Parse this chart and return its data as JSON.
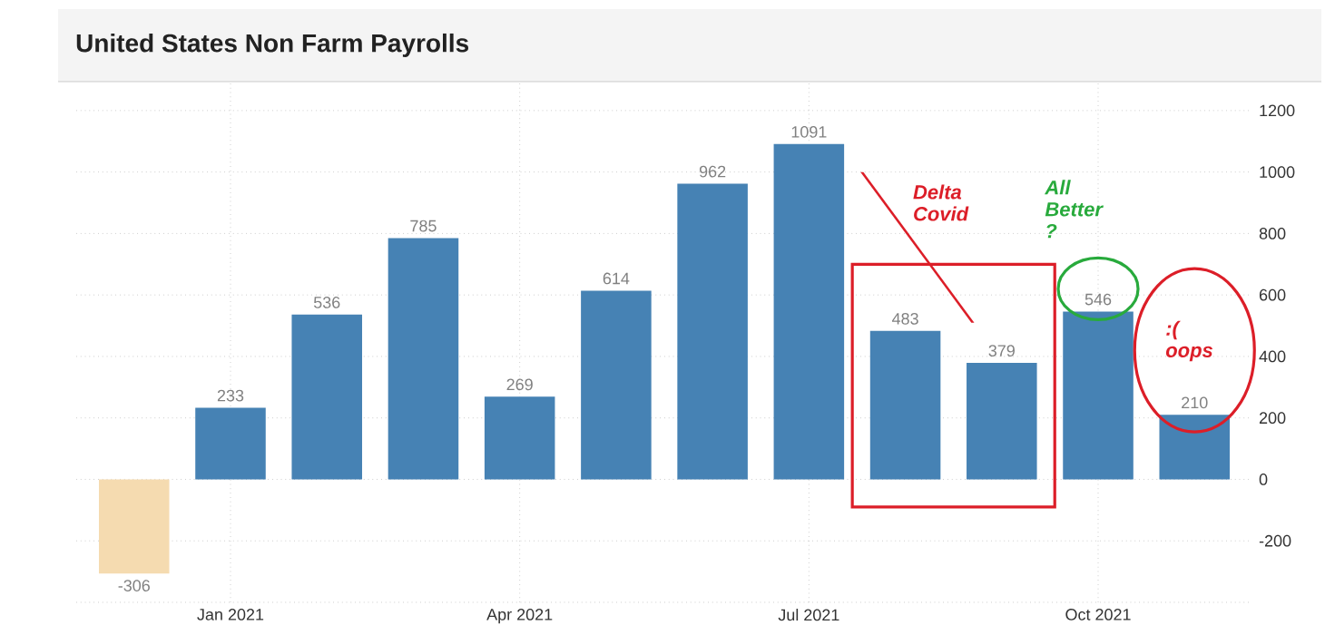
{
  "chart_data": {
    "type": "bar",
    "title": "United States Non Farm Payrolls",
    "categories": [
      null,
      "Jan 2021",
      null,
      null,
      "Apr 2021",
      null,
      null,
      "Jul 2021",
      null,
      null,
      "Oct 2021",
      null
    ],
    "values": [
      -306,
      233,
      536,
      785,
      269,
      614,
      962,
      1091,
      483,
      379,
      546,
      210
    ],
    "colors": [
      "#f5dbb0",
      "#4682b4",
      "#4682b4",
      "#4682b4",
      "#4682b4",
      "#4682b4",
      "#4682b4",
      "#4682b4",
      "#4682b4",
      "#4682b4",
      "#4682b4",
      "#4682b4"
    ],
    "ylim": [
      -400,
      1300
    ],
    "yticks": [
      {
        "value": -400,
        "label": null
      },
      -200,
      0,
      200,
      400,
      600,
      800,
      1000,
      1200
    ],
    "grid": true,
    "data_labels": true,
    "annotations": [
      "Delta Covid",
      "All Better ?",
      ":( oops"
    ]
  }
}
